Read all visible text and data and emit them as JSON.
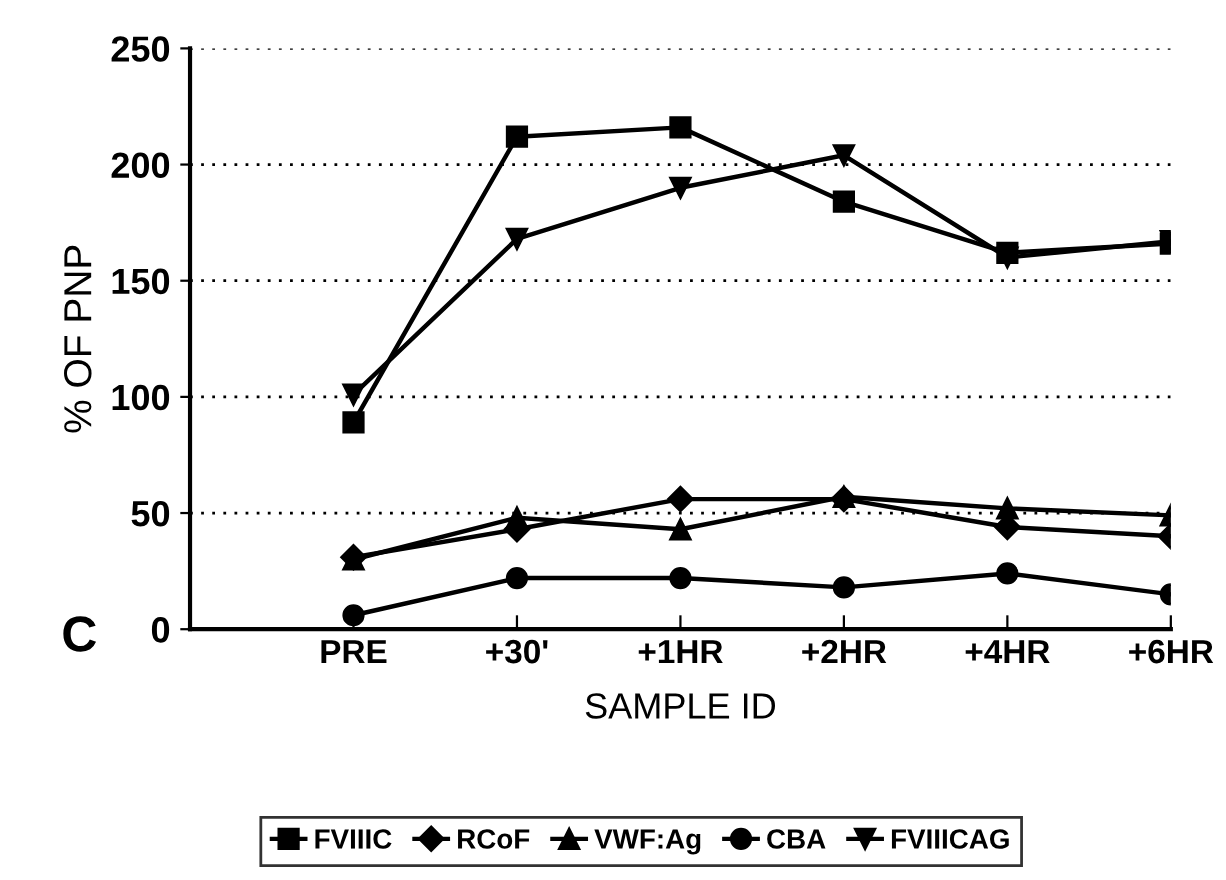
{
  "chart_data": {
    "type": "line",
    "xlabel": "SAMPLE ID",
    "ylabel": "% OF PNP",
    "annotations": [
      "C"
    ],
    "categories": [
      null,
      "PRE",
      "+30'",
      "+1HR",
      "+2HR",
      "+4HR",
      "+6HR"
    ],
    "series": [
      {
        "name": "FVIIIC",
        "color": "#000000",
        "marker": "square",
        "values": [
          null,
          89,
          212,
          216,
          184,
          162,
          166
        ]
      },
      {
        "name": "RCoF",
        "color": "#000000",
        "marker": "diamond",
        "values": [
          null,
          31,
          43,
          56,
          56,
          44,
          40
        ]
      },
      {
        "name": "VWF:Ag",
        "color": "#000000",
        "marker": "triangle",
        "values": [
          null,
          30,
          48,
          43,
          57,
          52,
          49
        ]
      },
      {
        "name": "CBA",
        "color": "#000000",
        "marker": "circle",
        "values": [
          null,
          6,
          22,
          22,
          18,
          24,
          15
        ]
      },
      {
        "name": "FVIIICAG",
        "color": "#000000",
        "marker": "triangle_down",
        "values": [
          null,
          101,
          168,
          190,
          204,
          160,
          167
        ]
      }
    ],
    "ylim": [
      0,
      250
    ],
    "yticks": [
      0,
      50,
      100,
      150,
      200,
      250
    ],
    "grid": "y",
    "legend": "bottom",
    "line_style": "solid"
  }
}
